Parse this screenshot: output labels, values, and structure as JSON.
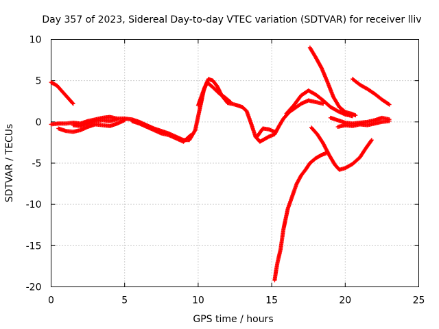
{
  "chart_data": {
    "type": "scatter",
    "title": "Day 357 of 2023, Sidereal Day-to-day VTEC variation (SDTVAR) for receiver lliv",
    "xlabel": "GPS time / hours",
    "ylabel": "SDTVAR / TECUs",
    "xlim": [
      0,
      25
    ],
    "ylim": [
      -20,
      10
    ],
    "xticks": [
      0,
      5,
      10,
      15,
      20,
      25
    ],
    "yticks": [
      -20,
      -15,
      -10,
      -5,
      0,
      5,
      10
    ],
    "grid": true,
    "marker": "+",
    "series_color": "#ff0000",
    "series": [
      {
        "name": "arc-1",
        "points": [
          [
            0.0,
            4.8
          ],
          [
            0.4,
            4.4
          ],
          [
            0.8,
            3.6
          ],
          [
            1.2,
            2.8
          ],
          [
            1.5,
            2.2
          ]
        ]
      },
      {
        "name": "arc-2",
        "points": [
          [
            0.0,
            -0.3
          ],
          [
            0.5,
            -0.2
          ],
          [
            1.0,
            -0.2
          ],
          [
            1.5,
            -0.1
          ],
          [
            2.0,
            -0.2
          ],
          [
            2.5,
            0.1
          ],
          [
            3.0,
            0.3
          ],
          [
            3.5,
            0.5
          ],
          [
            4.0,
            0.6
          ],
          [
            4.5,
            0.4
          ],
          [
            5.0,
            0.4
          ],
          [
            5.5,
            0.3
          ],
          [
            6.0,
            0.0
          ],
          [
            6.5,
            -0.4
          ],
          [
            7.0,
            -0.8
          ],
          [
            7.5,
            -1.1
          ],
          [
            8.0,
            -1.4
          ],
          [
            8.5,
            -1.8
          ],
          [
            9.0,
            -2.2
          ],
          [
            9.4,
            -2.2
          ],
          [
            9.8,
            -1.0
          ],
          [
            10.1,
            1.5
          ],
          [
            10.4,
            4.0
          ],
          [
            10.7,
            5.2
          ],
          [
            11.0,
            5.0
          ],
          [
            11.3,
            4.3
          ],
          [
            11.6,
            3.2
          ],
          [
            12.0,
            2.3
          ],
          [
            12.5,
            2.1
          ],
          [
            13.0,
            1.8
          ],
          [
            13.3,
            1.3
          ],
          [
            13.6,
            -0.2
          ],
          [
            13.9,
            -1.8
          ],
          [
            14.2,
            -2.4
          ],
          [
            14.5,
            -2.1
          ],
          [
            14.8,
            -1.8
          ],
          [
            15.2,
            -1.5
          ],
          [
            15.5,
            -0.5
          ],
          [
            15.8,
            0.4
          ],
          [
            16.2,
            1.2
          ],
          [
            16.6,
            1.7
          ],
          [
            17.0,
            2.2
          ],
          [
            17.5,
            2.6
          ],
          [
            18.0,
            2.4
          ],
          [
            18.5,
            2.2
          ]
        ]
      },
      {
        "name": "arc-3",
        "points": [
          [
            0.5,
            -0.8
          ],
          [
            1.0,
            -1.1
          ],
          [
            1.5,
            -1.2
          ],
          [
            2.0,
            -1.0
          ],
          [
            2.5,
            -0.6
          ],
          [
            3.0,
            -0.3
          ],
          [
            3.5,
            -0.4
          ],
          [
            4.0,
            -0.5
          ],
          [
            4.5,
            -0.2
          ],
          [
            5.0,
            0.2
          ]
        ]
      },
      {
        "name": "arc-4",
        "points": [
          [
            1.5,
            -0.4
          ],
          [
            2.0,
            -0.5
          ],
          [
            2.5,
            -0.2
          ],
          [
            3.0,
            0.1
          ],
          [
            3.5,
            0.2
          ],
          [
            4.0,
            0.1
          ],
          [
            4.5,
            0.3
          ]
        ]
      },
      {
        "name": "arc-5",
        "points": [
          [
            5.5,
            0.1
          ],
          [
            6.0,
            -0.2
          ],
          [
            6.5,
            -0.6
          ],
          [
            7.0,
            -1.0
          ],
          [
            7.5,
            -1.4
          ],
          [
            8.0,
            -1.6
          ],
          [
            8.5,
            -2.0
          ],
          [
            9.0,
            -2.4
          ],
          [
            9.5,
            -1.6
          ]
        ]
      },
      {
        "name": "arc-6",
        "points": [
          [
            10.0,
            2.0
          ],
          [
            10.3,
            3.5
          ],
          [
            10.6,
            4.8
          ],
          [
            11.0,
            4.2
          ],
          [
            11.4,
            3.5
          ],
          [
            11.8,
            3.0
          ],
          [
            12.2,
            2.4
          ]
        ]
      },
      {
        "name": "arc-7",
        "points": [
          [
            14.0,
            -1.8
          ],
          [
            14.4,
            -0.8
          ],
          [
            14.8,
            -0.9
          ],
          [
            15.2,
            -1.2
          ]
        ]
      },
      {
        "name": "arc-8",
        "points": [
          [
            16.0,
            1.0
          ],
          [
            16.5,
            2.0
          ],
          [
            17.0,
            3.2
          ],
          [
            17.5,
            3.8
          ],
          [
            18.0,
            3.3
          ],
          [
            18.5,
            2.6
          ],
          [
            19.0,
            1.8
          ],
          [
            19.5,
            1.3
          ],
          [
            20.0,
            0.9
          ],
          [
            20.5,
            0.7
          ]
        ]
      },
      {
        "name": "arc-9",
        "points": [
          [
            17.6,
            9.0
          ],
          [
            18.0,
            7.8
          ],
          [
            18.4,
            6.5
          ],
          [
            18.8,
            4.8
          ],
          [
            19.2,
            3.0
          ],
          [
            19.6,
            1.8
          ],
          [
            20.0,
            1.2
          ],
          [
            20.4,
            1.0
          ],
          [
            20.7,
            0.8
          ]
        ]
      },
      {
        "name": "arc-10",
        "points": [
          [
            19.0,
            0.5
          ],
          [
            19.5,
            0.2
          ],
          [
            20.0,
            -0.1
          ],
          [
            20.5,
            -0.2
          ],
          [
            21.0,
            -0.1
          ],
          [
            21.5,
            0.0
          ],
          [
            22.0,
            0.2
          ],
          [
            22.5,
            0.5
          ],
          [
            23.0,
            0.3
          ]
        ]
      },
      {
        "name": "arc-11",
        "points": [
          [
            19.5,
            -0.6
          ],
          [
            20.0,
            -0.4
          ],
          [
            20.5,
            -0.5
          ],
          [
            21.0,
            -0.3
          ],
          [
            21.5,
            -0.4
          ],
          [
            22.0,
            -0.2
          ],
          [
            22.5,
            0.0
          ],
          [
            23.0,
            0.1
          ]
        ]
      },
      {
        "name": "arc-12",
        "points": [
          [
            20.5,
            5.2
          ],
          [
            21.0,
            4.5
          ],
          [
            21.5,
            4.0
          ],
          [
            22.0,
            3.4
          ],
          [
            22.5,
            2.7
          ],
          [
            23.0,
            2.1
          ]
        ]
      },
      {
        "name": "arc-13",
        "points": [
          [
            17.7,
            -0.7
          ],
          [
            18.1,
            -1.5
          ],
          [
            18.5,
            -2.6
          ],
          [
            18.9,
            -4.0
          ],
          [
            19.3,
            -5.2
          ],
          [
            19.6,
            -5.8
          ],
          [
            20.0,
            -5.6
          ],
          [
            20.5,
            -5.1
          ],
          [
            21.0,
            -4.3
          ],
          [
            21.4,
            -3.2
          ],
          [
            21.8,
            -2.2
          ]
        ]
      },
      {
        "name": "arc-14",
        "points": [
          [
            15.2,
            -19.2
          ],
          [
            15.3,
            -18.0
          ],
          [
            15.4,
            -17.0
          ],
          [
            15.6,
            -15.5
          ],
          [
            15.8,
            -13.0
          ],
          [
            16.1,
            -10.5
          ],
          [
            16.4,
            -9.0
          ],
          [
            16.7,
            -7.5
          ],
          [
            17.0,
            -6.5
          ],
          [
            17.3,
            -5.8
          ],
          [
            17.6,
            -5.0
          ],
          [
            18.0,
            -4.4
          ],
          [
            18.4,
            -4.0
          ],
          [
            18.7,
            -3.8
          ]
        ]
      }
    ]
  }
}
